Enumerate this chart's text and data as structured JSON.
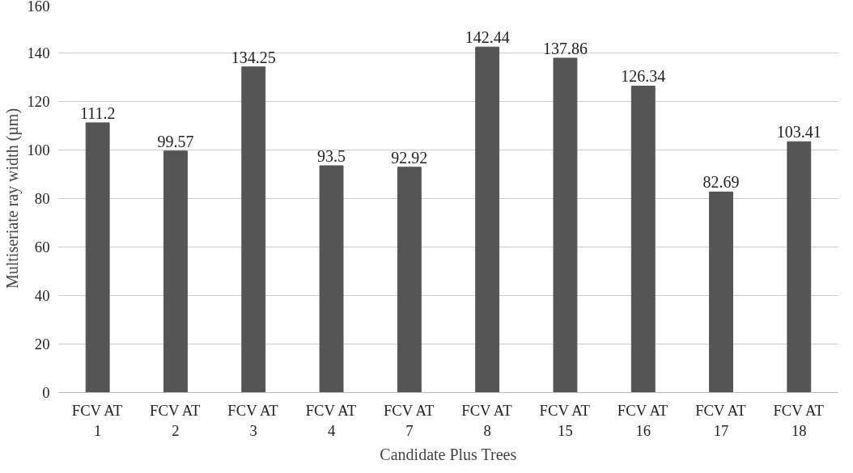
{
  "chart_data": {
    "type": "bar",
    "xlabel": "Candidate Plus Trees",
    "ylabel": "Multiseriate ray width (µm)",
    "categories": [
      "FCV AT 1",
      "FCV AT 2",
      "FCV AT 3",
      "FCV AT 4",
      "FCV AT 7",
      "FCV AT 8",
      "FCV AT 15",
      "FCV AT 16",
      "FCV AT 17",
      "FCV AT 18"
    ],
    "values": [
      111.2,
      99.57,
      134.25,
      93.5,
      92.92,
      142.44,
      137.86,
      126.34,
      82.69,
      103.41
    ],
    "color": "#555555",
    "ylim": [
      0,
      160
    ],
    "yticks": [
      0,
      20,
      40,
      60,
      80,
      100,
      120,
      140,
      160
    ],
    "grid": "y",
    "data_labels": true
  }
}
